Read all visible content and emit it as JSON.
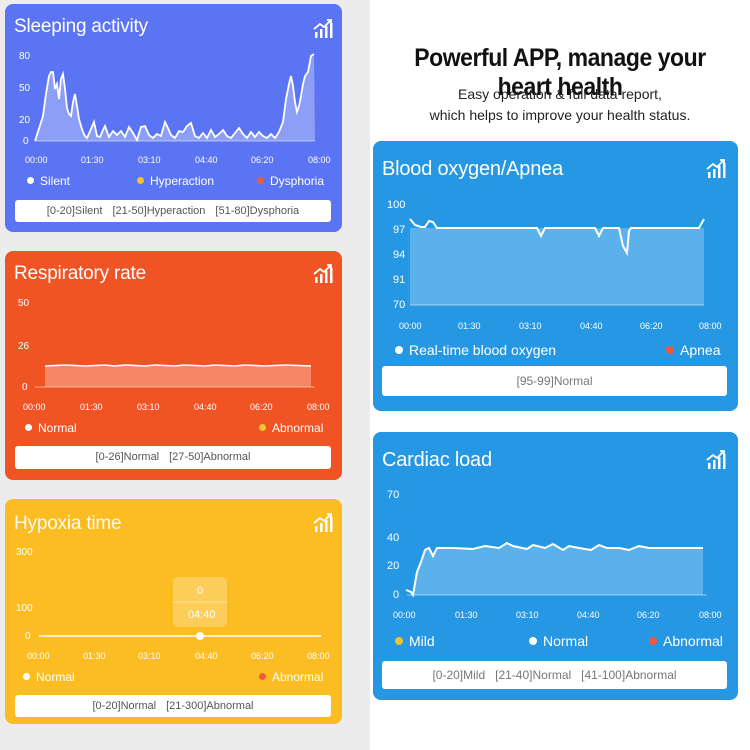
{
  "headline": "Powerful APP,  manage your heart health",
  "subtitle_line1": "Easy operation & full data report,",
  "subtitle_line2": "which helps to improve your health status.",
  "colors": {
    "blue": "#5b74f3",
    "red": "#f05424",
    "yellow": "#fcbd22",
    "sky": "#2597e3"
  },
  "time_ticks": [
    "00:00",
    "01:30",
    "03:10",
    "04:40",
    "06:20",
    "08:00"
  ],
  "sleeping": {
    "title": "Sleeping activity",
    "icon": "trend-chart-icon",
    "y_ticks": [
      "80",
      "50",
      "20",
      "0"
    ],
    "legend": [
      {
        "label": "Silent",
        "color": "#ffffff"
      },
      {
        "label": "Hyperaction",
        "color": "#f2c22f"
      },
      {
        "label": "Dysphoria",
        "color": "#f05a3a"
      }
    ],
    "ranges": [
      "[0-20]Silent",
      "[21-50]Hyperaction",
      "[51-80]Dysphoria"
    ]
  },
  "respiratory": {
    "title": "Respiratory rate",
    "icon": "trend-chart-icon",
    "y_ticks": [
      "50",
      "26",
      "0"
    ],
    "legend": [
      {
        "label": "Normal",
        "color": "#ffffff"
      },
      {
        "label": "Abnormal",
        "color": "#f2c22f"
      }
    ],
    "ranges": [
      "[0-26]Normal",
      "[27-50]Abnormal"
    ]
  },
  "hypoxia": {
    "title": "Hypoxia time",
    "icon": "trend-chart-icon",
    "y_ticks": [
      "300",
      "100",
      "0"
    ],
    "tooltip_value": "0",
    "tooltip_time": "04:40",
    "legend": [
      {
        "label": "Normal",
        "color": "#ffffff"
      },
      {
        "label": "Abnormal",
        "color": "#f05a3a"
      }
    ],
    "ranges": [
      "[0-20]Normal",
      "[21-300]Abnormal"
    ]
  },
  "oxygen": {
    "title": "Blood oxygen/Apnea",
    "icon": "trend-chart-icon",
    "y_ticks": [
      "100",
      "97",
      "94",
      "91",
      "70"
    ],
    "legend": [
      {
        "label": "Real-time blood oxygen",
        "color": "#ffffff"
      },
      {
        "label": "Apnea",
        "color": "#f05a3a"
      }
    ],
    "ranges": [
      "[95-99]Normal"
    ]
  },
  "cardiac": {
    "title": "Cardiac load",
    "icon": "trend-chart-icon",
    "y_ticks": [
      "70",
      "40",
      "20",
      "0"
    ],
    "legend": [
      {
        "label": "Mild",
        "color": "#f2c22f"
      },
      {
        "label": "Normal",
        "color": "#ffffff"
      },
      {
        "label": "Abnormal",
        "color": "#f05a3a"
      }
    ],
    "ranges": [
      "[0-20]Mild",
      "[21-40]Normal",
      "[41-100]Abnormal"
    ]
  }
}
